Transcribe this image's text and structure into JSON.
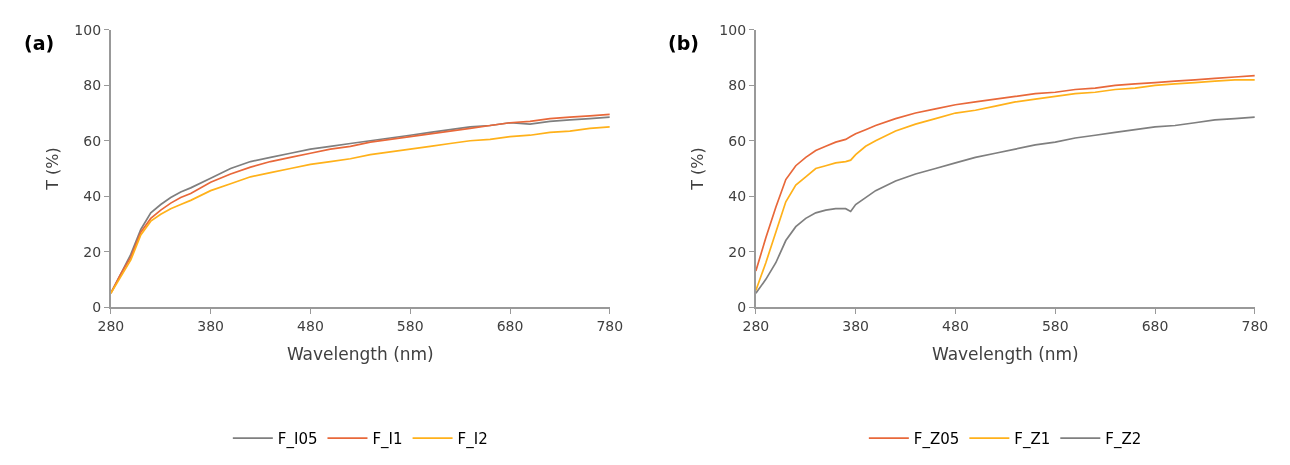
{
  "chart_data": [
    {
      "type": "line",
      "title": "(a)",
      "xlabel": "Wavelength (nm)",
      "ylabel": "T (%)",
      "xlim": [
        280,
        780
      ],
      "xticks": [
        280,
        380,
        480,
        580,
        680,
        780
      ],
      "ylim": [
        0,
        100
      ],
      "yticks": [
        0,
        20,
        40,
        60,
        80,
        100
      ],
      "grid": false,
      "legend": "bottom",
      "marker": "none",
      "line_style": "solid",
      "x": [
        280,
        290,
        300,
        310,
        320,
        330,
        340,
        350,
        360,
        380,
        400,
        420,
        440,
        460,
        480,
        500,
        520,
        540,
        560,
        580,
        600,
        620,
        640,
        660,
        680,
        700,
        720,
        740,
        760,
        780
      ],
      "series": [
        {
          "name": "F_I05",
          "color": "#7f7f7f",
          "values": [
            5,
            12,
            19,
            28,
            34,
            37,
            39.5,
            41.5,
            43,
            46.5,
            50,
            52.5,
            54,
            55.5,
            57,
            58,
            59,
            60,
            61,
            62,
            63,
            64,
            65,
            65.5,
            66.5,
            66,
            67,
            67.5,
            68,
            68.5
          ]
        },
        {
          "name": "F_I1",
          "color": "#e8683a",
          "values": [
            5,
            12,
            18,
            27,
            32,
            35,
            37.5,
            39.5,
            41,
            45,
            48,
            50.5,
            52.5,
            54,
            55.5,
            57,
            58,
            59.5,
            60.5,
            61.5,
            62.5,
            63.5,
            64.5,
            65.5,
            66.5,
            67,
            68,
            68.5,
            69,
            69.5
          ]
        },
        {
          "name": "F_I2",
          "color": "#ffb11a",
          "values": [
            5,
            11,
            17,
            26,
            31,
            33.5,
            35.5,
            37,
            38.5,
            42,
            44.5,
            47,
            48.5,
            50,
            51.5,
            52.5,
            53.5,
            55,
            56,
            57,
            58,
            59,
            60,
            60.5,
            61.5,
            62,
            63,
            63.5,
            64.5,
            65
          ]
        }
      ]
    },
    {
      "type": "line",
      "title": "(b)",
      "xlabel": "Wavelength (nm)",
      "ylabel": "T (%)",
      "xlim": [
        280,
        780
      ],
      "xticks": [
        280,
        380,
        480,
        580,
        680,
        780
      ],
      "ylim": [
        0,
        100
      ],
      "yticks": [
        0,
        20,
        40,
        60,
        80,
        100
      ],
      "grid": false,
      "legend": "bottom",
      "marker": "none",
      "line_style": "solid",
      "x": [
        280,
        290,
        300,
        310,
        320,
        330,
        340,
        350,
        360,
        370,
        375,
        380,
        390,
        400,
        420,
        440,
        460,
        480,
        500,
        520,
        540,
        560,
        580,
        600,
        620,
        640,
        660,
        680,
        700,
        720,
        740,
        760,
        780
      ],
      "series": [
        {
          "name": "F_Z05",
          "color": "#e8683a",
          "values": [
            13,
            25,
            36,
            46,
            51,
            54,
            56.5,
            58,
            59.5,
            60.5,
            61.5,
            62.5,
            64,
            65.5,
            68,
            70,
            71.5,
            73,
            74,
            75,
            76,
            77,
            77.5,
            78.5,
            79,
            80,
            80.5,
            81,
            81.5,
            82,
            82.5,
            83,
            83.5
          ]
        },
        {
          "name": "F_Z1",
          "color": "#ffb11a",
          "values": [
            6,
            16,
            27,
            38,
            44,
            47,
            50,
            51,
            52,
            52.5,
            53,
            55,
            58,
            60,
            63.5,
            66,
            68,
            70,
            71,
            72.5,
            74,
            75,
            76,
            77,
            77.5,
            78.5,
            79,
            80,
            80.5,
            81,
            81.5,
            82,
            82
          ]
        },
        {
          "name": "F_Z2",
          "color": "#7f7f7f",
          "values": [
            5,
            10,
            16,
            24,
            29,
            32,
            34,
            35,
            35.5,
            35.5,
            34.5,
            37,
            39.5,
            42,
            45.5,
            48,
            50,
            52,
            54,
            55.5,
            57,
            58.5,
            59.5,
            61,
            62,
            63,
            64,
            65,
            65.5,
            66.5,
            67.5,
            68,
            68.5
          ]
        }
      ]
    }
  ]
}
